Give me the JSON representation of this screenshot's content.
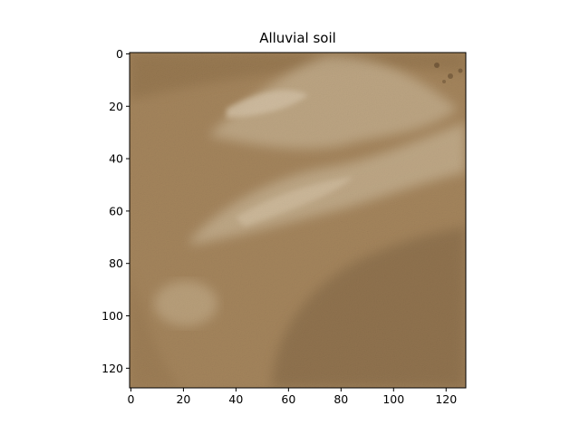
{
  "title": "Alluvial soil",
  "image": {
    "subject": "alluvial-soil-texture",
    "palette": {
      "base": "#a6875f",
      "light_sand": "#d8c9ad",
      "dark_sand": "#7c6243",
      "edge_dark": "#6e5233"
    },
    "extent": {
      "x": [
        0,
        128
      ],
      "y": [
        0,
        128
      ]
    }
  },
  "axes": {
    "x_ticks": [
      "0",
      "20",
      "40",
      "60",
      "80",
      "100",
      "120"
    ],
    "y_ticks": [
      "0",
      "20",
      "40",
      "60",
      "80",
      "100",
      "120"
    ],
    "tick_values": [
      0,
      20,
      40,
      60,
      80,
      100,
      120
    ],
    "x_min": -0.5,
    "x_max": 127.5,
    "y_min": -0.5,
    "y_max": 127.5,
    "y_inverted": true
  }
}
